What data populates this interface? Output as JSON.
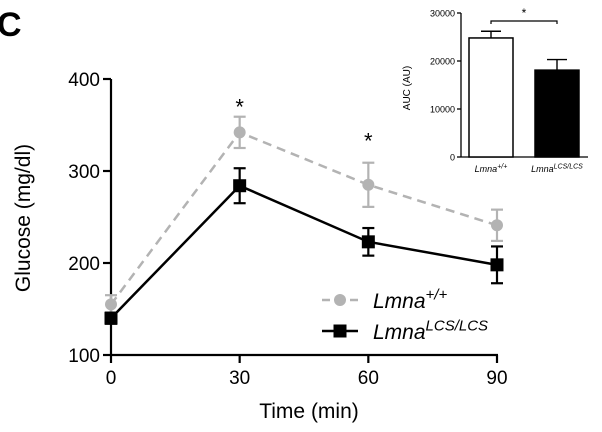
{
  "panel_label": "C",
  "chart_data": [
    {
      "type": "line",
      "xlabel": "Time (min)",
      "ylabel": "Glucose (mg/dl)",
      "xlim": [
        0,
        90
      ],
      "ylim": [
        100,
        400
      ],
      "x_ticks": [
        0,
        30,
        60,
        90
      ],
      "y_ticks": [
        100,
        200,
        300,
        400
      ],
      "grid": false,
      "legend_position": "bottom-right",
      "series": [
        {
          "name": "Lmna",
          "superscript": "+/+",
          "color": "#b3b3b3",
          "line_style": "dashed",
          "marker": "circle",
          "x": [
            0,
            30,
            60,
            90
          ],
          "y": [
            155,
            342,
            285,
            241
          ],
          "error": [
            10,
            17,
            24,
            17
          ]
        },
        {
          "name": "Lmna",
          "superscript": "LCS/LCS",
          "color": "#000000",
          "line_style": "solid",
          "marker": "square",
          "x": [
            0,
            30,
            60,
            90
          ],
          "y": [
            140,
            284,
            223,
            198
          ],
          "error": [
            6,
            19,
            15,
            20
          ]
        }
      ],
      "annotations": [
        {
          "text": "*",
          "x": 30,
          "y": 370
        },
        {
          "text": "*",
          "x": 60,
          "y": 333
        }
      ]
    },
    {
      "type": "bar",
      "categories": [
        {
          "name": "Lmna",
          "superscript": "+/+"
        },
        {
          "name": "Lmna",
          "superscript": "LCS/LCS"
        }
      ],
      "values": [
        24800,
        18100
      ],
      "errors": [
        1400,
        2200
      ],
      "fills": [
        "#ffffff",
        "#000000"
      ],
      "ylabel": "AUC (AU)",
      "ylim": [
        0,
        30000
      ],
      "y_ticks": [
        0,
        10000,
        20000,
        30000
      ],
      "y_tick_labels": [
        "0",
        "10000",
        "20000",
        "30000"
      ],
      "significance": "*"
    }
  ]
}
